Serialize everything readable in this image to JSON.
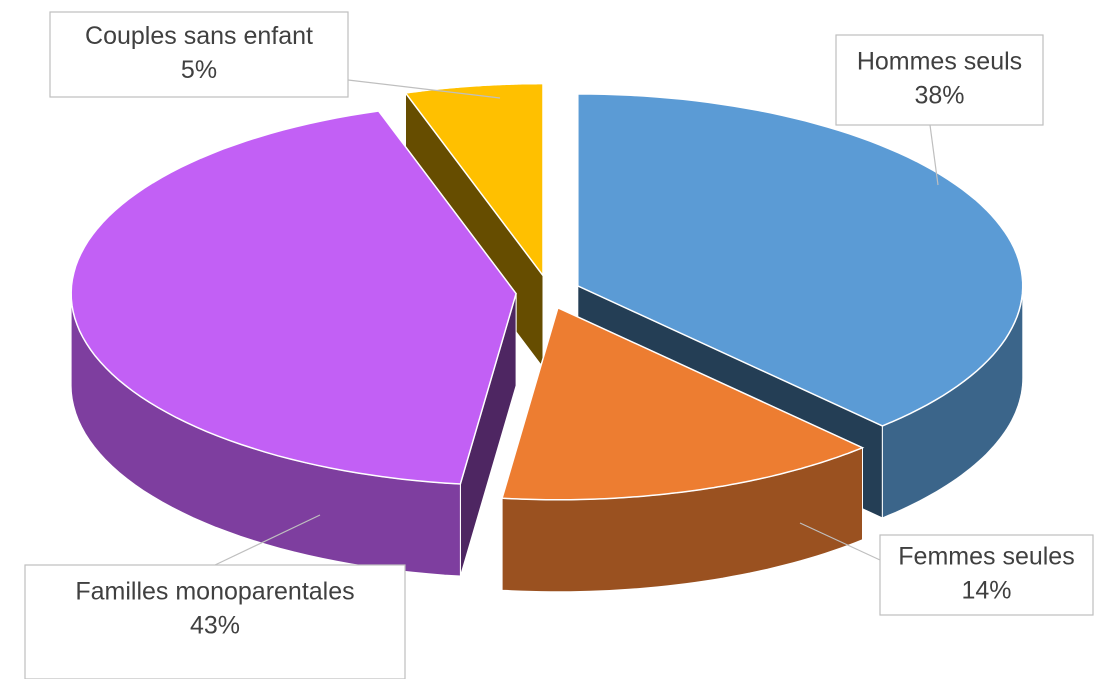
{
  "chart_data": {
    "type": "pie3d",
    "categories": [
      "Hommes seuls",
      "Femmes seules",
      "Familles monoparentales",
      "Couples sans enfant"
    ],
    "values": [
      38,
      14,
      43,
      5
    ],
    "value_labels": [
      "38%",
      "14%",
      "43%",
      "5%"
    ],
    "colors": [
      "#5b9bd5",
      "#ed7d31",
      "#c260f5",
      "#ffc000"
    ]
  }
}
